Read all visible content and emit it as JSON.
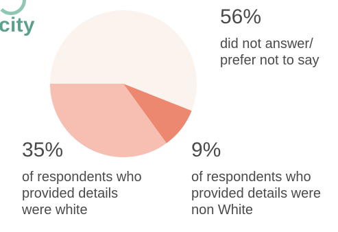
{
  "title_fragment": "city",
  "chart_data": {
    "type": "pie",
    "slices": [
      {
        "label": "did not answer/ prefer not to say",
        "percent_label": "56%",
        "value": 56,
        "color": "#fbf3ed"
      },
      {
        "label": "of respondents who provided details were non White",
        "percent_label": "9%",
        "value": 9,
        "color": "#ec8770"
      },
      {
        "label": "of respondents who provided details were white",
        "percent_label": "35%",
        "value": 35,
        "color": "#f6bfb1"
      }
    ]
  }
}
